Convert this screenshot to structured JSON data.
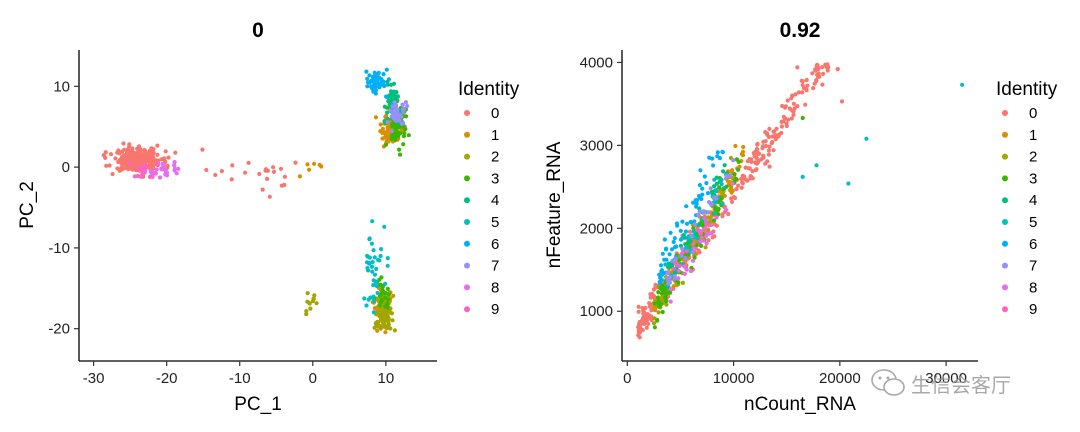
{
  "chart_data": [
    {
      "type": "scatter",
      "title": "0",
      "xlabel": "PC_1",
      "ylabel": "PC_2",
      "xlim": [
        -32,
        17
      ],
      "ylim": [
        -24,
        14.5
      ],
      "xticks": [
        -30,
        -20,
        -10,
        0,
        10
      ],
      "yticks": [
        -20,
        -10,
        0,
        10
      ],
      "legend_title": "Identity",
      "legend_position": "right",
      "grid": false,
      "clusters": [
        {
          "name": "0",
          "color": "#F8766D",
          "n": 260,
          "center": [
            -24,
            0.8
          ],
          "spread": [
            3.2,
            1.4
          ]
        },
        {
          "name": "0",
          "color": "#F8766D",
          "n": 22,
          "center": [
            -8,
            -1
          ],
          "spread": [
            6,
            3
          ]
        },
        {
          "name": "1",
          "color": "#D89000",
          "n": 90,
          "center": [
            10.5,
            4.5
          ],
          "spread": [
            1.3,
            1.8
          ]
        },
        {
          "name": "1",
          "color": "#D89000",
          "n": 70,
          "center": [
            9.5,
            -17.5
          ],
          "spread": [
            1.2,
            2.2
          ]
        },
        {
          "name": "1",
          "color": "#D89000",
          "n": 6,
          "center": [
            0,
            0
          ],
          "spread": [
            1.5,
            1.0
          ]
        },
        {
          "name": "2",
          "color": "#A3A500",
          "n": 80,
          "center": [
            9.8,
            -18
          ],
          "spread": [
            1.1,
            2.0
          ]
        },
        {
          "name": "2",
          "color": "#A3A500",
          "n": 12,
          "center": [
            -0.5,
            -17
          ],
          "spread": [
            0.8,
            1.8
          ]
        },
        {
          "name": "3",
          "color": "#39B600",
          "n": 80,
          "center": [
            11.5,
            5.5
          ],
          "spread": [
            1.2,
            2.5
          ]
        },
        {
          "name": "3",
          "color": "#39B600",
          "n": 25,
          "center": [
            9.5,
            -16
          ],
          "spread": [
            1.0,
            2.0
          ]
        },
        {
          "name": "4",
          "color": "#00BF7D",
          "n": 60,
          "center": [
            11,
            8
          ],
          "spread": [
            1.0,
            1.8
          ]
        },
        {
          "name": "5",
          "color": "#00BFC4",
          "n": 40,
          "center": [
            8.5,
            -13
          ],
          "spread": [
            1.5,
            4.5
          ]
        },
        {
          "name": "6",
          "color": "#00B0F6",
          "n": 55,
          "center": [
            8.5,
            10.5
          ],
          "spread": [
            1.2,
            1.4
          ]
        },
        {
          "name": "7",
          "color": "#9590FF",
          "n": 40,
          "center": [
            11.5,
            6.5
          ],
          "spread": [
            1.0,
            2.0
          ]
        },
        {
          "name": "8",
          "color": "#E76BF3",
          "n": 30,
          "center": [
            -21,
            -0.5
          ],
          "spread": [
            2.5,
            1.0
          ]
        },
        {
          "name": "9",
          "color": "#FF62BC",
          "n": 10,
          "center": [
            -23.5,
            0
          ],
          "spread": [
            2.0,
            1.0
          ]
        }
      ]
    },
    {
      "type": "scatter",
      "title": "0.92",
      "xlabel": "nCount_RNA",
      "ylabel": "nFeature_RNA",
      "xlim": [
        -500,
        33000
      ],
      "ylim": [
        400,
        4150
      ],
      "xticks": [
        0,
        10000,
        20000,
        30000
      ],
      "xtick_labels": [
        "0",
        "10000",
        "20000",
        "30000"
      ],
      "yticks": [
        1000,
        2000,
        3000,
        4000
      ],
      "legend_title": "Identity",
      "legend_position": "right",
      "grid": false,
      "correlation": 0.92,
      "clusters": [
        {
          "name": "0",
          "color": "#F8766D",
          "n": 340,
          "xrange": [
            1000,
            19000
          ],
          "slope": 0.18,
          "intercept": 650,
          "noise": 170
        },
        {
          "name": "1",
          "color": "#D89000",
          "n": 90,
          "xrange": [
            2500,
            11000
          ],
          "slope": 0.22,
          "intercept": 500,
          "noise": 170
        },
        {
          "name": "2",
          "color": "#A3A500",
          "n": 80,
          "xrange": [
            2500,
            10000
          ],
          "slope": 0.22,
          "intercept": 450,
          "noise": 160
        },
        {
          "name": "3",
          "color": "#39B600",
          "n": 80,
          "xrange": [
            2500,
            10500
          ],
          "slope": 0.21,
          "intercept": 500,
          "noise": 180
        },
        {
          "name": "4",
          "color": "#00BF7D",
          "n": 55,
          "xrange": [
            3500,
            10000
          ],
          "slope": 0.22,
          "intercept": 600,
          "noise": 150
        },
        {
          "name": "5",
          "color": "#00BFC4",
          "n": 25,
          "xrange": [
            3500,
            9000
          ],
          "slope": 0.23,
          "intercept": 500,
          "noise": 160
        },
        {
          "name": "6",
          "color": "#00B0F6",
          "n": 60,
          "xrange": [
            3000,
            9000
          ],
          "slope": 0.26,
          "intercept": 650,
          "noise": 180
        },
        {
          "name": "7",
          "color": "#9590FF",
          "n": 35,
          "xrange": [
            3500,
            10000
          ],
          "slope": 0.22,
          "intercept": 550,
          "noise": 150
        },
        {
          "name": "8",
          "color": "#E76BF3",
          "n": 25,
          "xrange": [
            4000,
            10000
          ],
          "slope": 0.2,
          "intercept": 450,
          "noise": 140
        },
        {
          "name": "9",
          "color": "#FF62BC",
          "n": 10,
          "xrange": [
            2000,
            8000
          ],
          "slope": 0.22,
          "intercept": 500,
          "noise": 150
        }
      ],
      "outliers": [
        {
          "x": 31500,
          "y": 3730,
          "color": "#00BFC4"
        },
        {
          "x": 22500,
          "y": 3080,
          "color": "#00BFC4"
        },
        {
          "x": 17800,
          "y": 2760,
          "color": "#00BFC4"
        },
        {
          "x": 16500,
          "y": 2620,
          "color": "#00BFC4"
        },
        {
          "x": 20800,
          "y": 2540,
          "color": "#00BFC4"
        },
        {
          "x": 20200,
          "y": 3530,
          "color": "#F8766D"
        },
        {
          "x": 19800,
          "y": 3920,
          "color": "#F8766D"
        },
        {
          "x": 16500,
          "y": 3330,
          "color": "#39B600"
        },
        {
          "x": 16000,
          "y": 3940,
          "color": "#F8766D"
        }
      ]
    }
  ],
  "legend": {
    "title": "Identity",
    "items": [
      {
        "label": "0",
        "color": "#F8766D"
      },
      {
        "label": "1",
        "color": "#D89000"
      },
      {
        "label": "2",
        "color": "#A3A500"
      },
      {
        "label": "3",
        "color": "#39B600"
      },
      {
        "label": "4",
        "color": "#00BF7D"
      },
      {
        "label": "5",
        "color": "#00BFC4"
      },
      {
        "label": "6",
        "color": "#00B0F6"
      },
      {
        "label": "7",
        "color": "#9590FF"
      },
      {
        "label": "8",
        "color": "#E76BF3"
      },
      {
        "label": "9",
        "color": "#FF62BC"
      }
    ]
  },
  "watermark": {
    "icon": "wechat-icon",
    "text": "生信会客厅"
  }
}
